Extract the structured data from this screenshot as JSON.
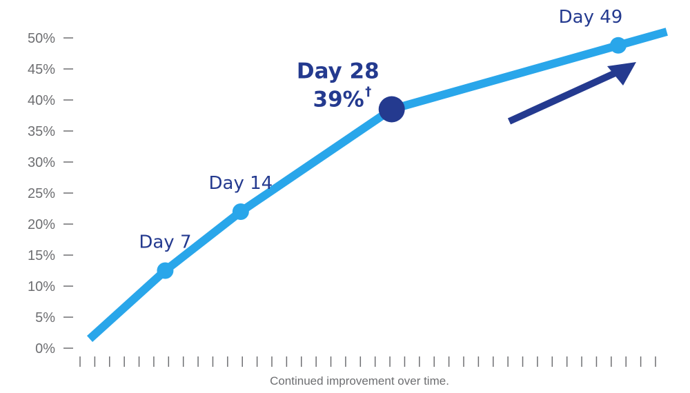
{
  "chart_data": {
    "type": "line",
    "y_tick_labels": [
      "0%",
      "5%",
      "10%",
      "15%",
      "20%",
      "25%",
      "30%",
      "35%",
      "40%",
      "45%",
      "50%"
    ],
    "y_ticks": [
      0,
      5,
      10,
      15,
      20,
      25,
      30,
      35,
      40,
      45,
      50
    ],
    "ylim": [
      0,
      50
    ],
    "xlim": [
      0,
      56
    ],
    "grid": false,
    "series": [
      {
        "color": "#29a6ea",
        "points": [
          {
            "x": 0,
            "y": 1.5
          },
          {
            "x": 7,
            "y": 12.5
          },
          {
            "x": 14,
            "y": 22
          },
          {
            "x": 28,
            "y": 38.5
          },
          {
            "x": 49,
            "y": 48.8
          },
          {
            "x": 53.5,
            "y": 51
          }
        ]
      }
    ],
    "markers": [
      {
        "label": "Day 7",
        "x": 7,
        "y": 12.5,
        "emphasis": false
      },
      {
        "label": "Day 14",
        "x": 14,
        "y": 22,
        "emphasis": false
      },
      {
        "label": "Day 28",
        "x": 28,
        "y": 38.5,
        "emphasis": true,
        "value_label": "39%",
        "footnote_mark": "†"
      },
      {
        "label": "Day 49",
        "x": 49,
        "y": 48.8,
        "emphasis": false
      }
    ],
    "trend_arrow": true,
    "caption": "Continued improvement over time.",
    "colors": {
      "line": "#29a6ea",
      "highlight": "#243a8f",
      "axis": "#6d6e71"
    }
  }
}
